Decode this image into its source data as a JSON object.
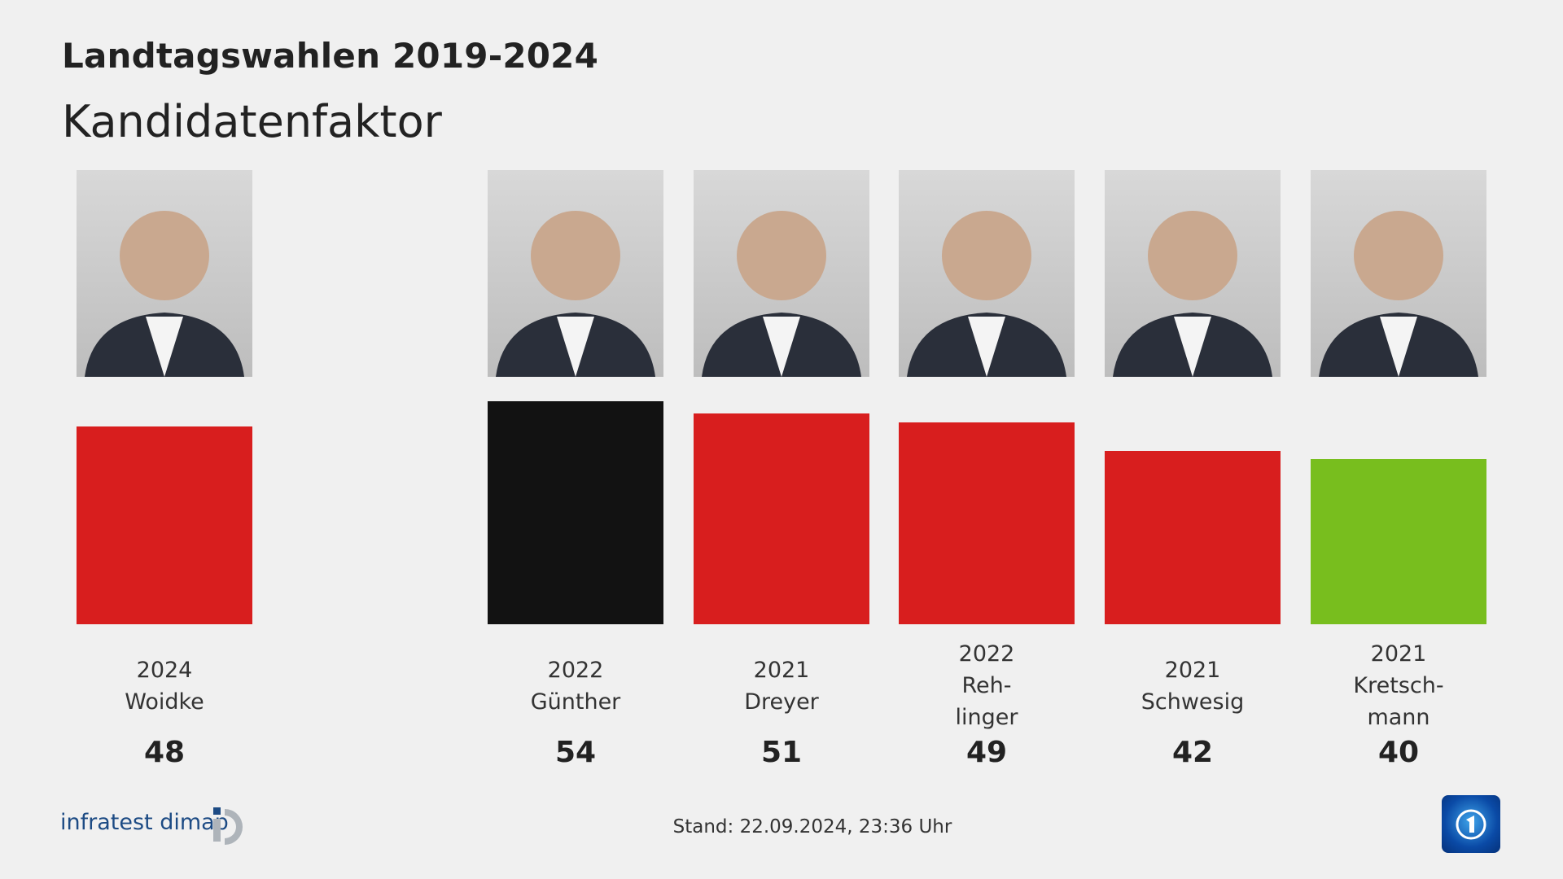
{
  "header": {
    "title": "Landtagswahlen 2019-2024",
    "subtitle": "Kandidatenfaktor"
  },
  "chart_data": {
    "type": "bar",
    "title": "Landtagswahlen 2019-2024",
    "subtitle": "Kandidatenfaktor",
    "ylim": [
      0,
      60
    ],
    "grid": false,
    "categories": [
      {
        "year": "2024",
        "name": [
          "Woidke"
        ]
      },
      {
        "year": "2022",
        "name": [
          "Günther"
        ]
      },
      {
        "year": "2021",
        "name": [
          "Dreyer"
        ]
      },
      {
        "year": "2022",
        "name": [
          "Reh-",
          "linger"
        ]
      },
      {
        "year": "2021",
        "name": [
          "Schwesig"
        ]
      },
      {
        "year": "2021",
        "name": [
          "Kretsch-",
          "mann"
        ]
      }
    ],
    "values": [
      48,
      54,
      51,
      49,
      42,
      40
    ],
    "value_labels": [
      "48",
      "54",
      "51",
      "49",
      "42",
      "40"
    ],
    "colors": [
      "#d81e1e",
      "#121212",
      "#d81e1e",
      "#d81e1e",
      "#d81e1e",
      "#78be1e"
    ]
  },
  "footer": {
    "stand": "Stand:  22.09.2024, 23:36 Uhr",
    "brand": "infratest dimap",
    "broadcaster_logo": "ARD tagesschau"
  }
}
